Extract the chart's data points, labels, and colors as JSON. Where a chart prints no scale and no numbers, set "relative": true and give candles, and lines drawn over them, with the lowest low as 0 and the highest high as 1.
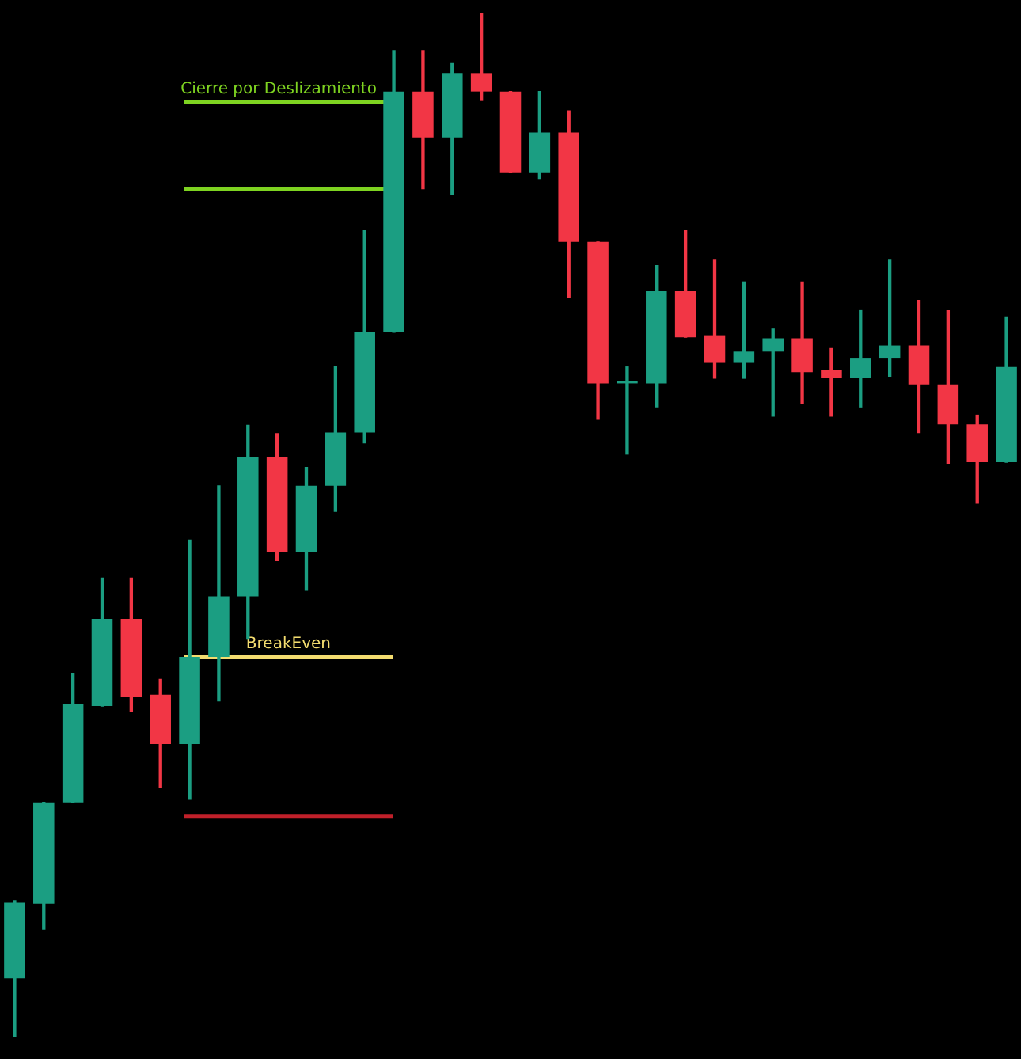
{
  "chart_data": {
    "type": "candlestick",
    "relative": true,
    "categories": [
      null,
      null,
      null,
      null,
      null,
      null,
      null,
      null,
      null,
      null,
      null,
      null,
      null,
      null,
      null,
      null,
      null,
      null,
      null,
      null,
      null,
      null,
      null,
      null,
      null,
      null,
      null,
      null,
      null,
      null,
      null,
      null,
      null,
      null,
      null
    ],
    "ohlc": [
      [
        0.057,
        0.133,
        0,
        0.131
      ],
      [
        0.13,
        0.229,
        0.105,
        0.229
      ],
      [
        0.229,
        0.355,
        0.229,
        0.325
      ],
      [
        0.323,
        0.448,
        0.323,
        0.408
      ],
      [
        0.408,
        0.448,
        0.318,
        0.332
      ],
      [
        0.334,
        0.349,
        0.244,
        0.286
      ],
      [
        0.286,
        0.485,
        0.232,
        0.371
      ],
      [
        0.371,
        0.538,
        0.328,
        0.43
      ],
      [
        0.43,
        0.597,
        0.389,
        0.566
      ],
      [
        0.566,
        0.589,
        0.465,
        0.473
      ],
      [
        0.473,
        0.556,
        0.436,
        0.538
      ],
      [
        0.538,
        0.654,
        0.513,
        0.59
      ],
      [
        0.59,
        0.787,
        0.58,
        0.688
      ],
      [
        0.688,
        0.963,
        0.688,
        0.923
      ],
      [
        0.923,
        0.963,
        0.828,
        0.878
      ],
      [
        0.878,
        0.951,
        0.822,
        0.941
      ],
      [
        0.941,
        1,
        0.915,
        0.923
      ],
      [
        0.923,
        0.923,
        0.844,
        0.844
      ],
      [
        0.844,
        0.923,
        0.838,
        0.883
      ],
      [
        0.883,
        0.904,
        0.722,
        0.776
      ],
      [
        0.776,
        0.776,
        0.603,
        0.638
      ],
      [
        0.638,
        0.654,
        0.569,
        0.638
      ],
      [
        0.638,
        0.753,
        0.615,
        0.728
      ],
      [
        0.728,
        0.787,
        0.683,
        0.683
      ],
      [
        0.685,
        0.759,
        0.643,
        0.658
      ],
      [
        0.658,
        0.737,
        0.643,
        0.669
      ],
      [
        0.669,
        0.691,
        0.606,
        0.682
      ],
      [
        0.682,
        0.737,
        0.618,
        0.649
      ],
      [
        0.651,
        0.672,
        0.606,
        0.643
      ],
      [
        0.643,
        0.709,
        0.615,
        0.663
      ],
      [
        0.663,
        0.759,
        0.645,
        0.675
      ],
      [
        0.675,
        0.719,
        0.59,
        0.637
      ],
      [
        0.637,
        0.709,
        0.56,
        0.598
      ],
      [
        0.598,
        0.607,
        0.521,
        0.561
      ],
      [
        0.561,
        0.703,
        0.561,
        0.654
      ]
    ],
    "colors": [
      "#1b9e82",
      "#1b9e82",
      "#1b9e82",
      "#1b9e82",
      "#f23645",
      "#f23645",
      "#1b9e82",
      "#1b9e82",
      "#1b9e82",
      "#f23645",
      "#1b9e82",
      "#1b9e82",
      "#1b9e82",
      "#1b9e82",
      "#f23645",
      "#1b9e82",
      "#f23645",
      "#f23645",
      "#1b9e82",
      "#f23645",
      "#f23645",
      "#1b9e82",
      "#1b9e82",
      "#f23645",
      "#f23645",
      "#1b9e82",
      "#1b9e82",
      "#f23645",
      "#f23645",
      "#1b9e82",
      "#1b9e82",
      "#f23645",
      "#f23645",
      "#f23645",
      "#1b9e82"
    ],
    "ref_lines": [
      {
        "axis": "y",
        "value": 0.913,
        "label": "Cierre por Deslizamiento",
        "color": "#7ed321"
      },
      {
        "axis": "y",
        "value": 0.828,
        "color": "#7ed321"
      },
      {
        "axis": "y",
        "value": 0.371,
        "label": "BreakEven",
        "color": "#f3dc6f"
      },
      {
        "axis": "y",
        "value": 0.215,
        "color": "#c0202a"
      }
    ],
    "legend": false
  }
}
